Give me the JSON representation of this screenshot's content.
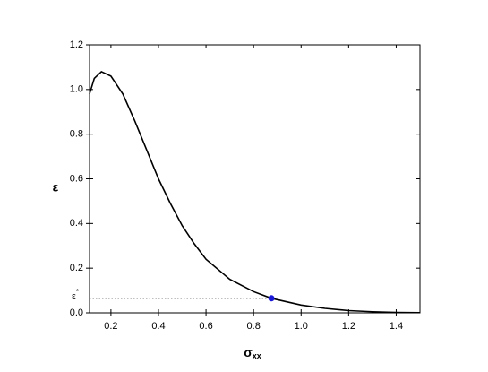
{
  "chart_data": {
    "type": "line",
    "x_label": "σ",
    "x_label_sub": "xx",
    "y_label": "ε",
    "x": [
      0.11,
      0.13,
      0.16,
      0.2,
      0.25,
      0.3,
      0.35,
      0.4,
      0.45,
      0.5,
      0.55,
      0.6,
      0.7,
      0.8,
      0.875,
      1.0,
      1.1,
      1.2,
      1.3,
      1.4,
      1.5
    ],
    "series": [
      {
        "color": "#000000",
        "values": [
          0.98,
          1.05,
          1.08,
          1.06,
          0.98,
          0.86,
          0.73,
          0.6,
          0.49,
          0.39,
          0.31,
          0.24,
          0.15,
          0.095,
          0.065,
          0.035,
          0.02,
          0.01,
          0.005,
          0.002,
          0.001
        ]
      }
    ],
    "marker": {
      "x": 0.875,
      "y": 0.065,
      "color": "#1a1ad6",
      "label": "ε",
      "label_sup": "*"
    },
    "xlim": [
      0.11,
      1.5
    ],
    "ylim": [
      0,
      1.2
    ],
    "xticks": [
      0.2,
      0.4,
      0.6,
      0.8,
      {
        "value": 1.0,
        "label": "1.0"
      },
      1.2,
      1.4
    ],
    "yticks": [
      {
        "value": 0,
        "label": "0.0"
      },
      0.2,
      0.4,
      0.6,
      0.8,
      {
        "value": 1.0,
        "label": "1.0"
      },
      1.2
    ]
  }
}
